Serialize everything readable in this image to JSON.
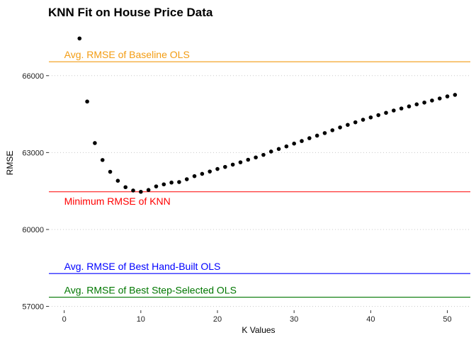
{
  "chart_data": {
    "type": "scatter",
    "title": "KNN Fit on House Price Data",
    "xlabel": "K Values",
    "ylabel": "RMSE",
    "xlim": [
      -2,
      53
    ],
    "ylim": [
      56850,
      67900
    ],
    "x_ticks": [
      0,
      10,
      20,
      30,
      40,
      50
    ],
    "y_ticks": [
      57000,
      60000,
      63000,
      66000
    ],
    "grid": "horizontal dotted",
    "marker_color": "#000000",
    "series": [
      {
        "x": [
          2,
          3,
          4,
          5,
          6,
          7,
          8,
          9,
          10,
          11,
          12,
          13,
          14,
          15,
          16,
          17,
          18,
          19,
          20,
          21,
          22,
          23,
          24,
          25,
          26,
          27,
          28,
          29,
          30,
          31,
          32,
          33,
          34,
          35,
          36,
          37,
          38,
          39,
          40,
          41,
          42,
          43,
          44,
          45,
          46,
          47,
          48,
          49,
          50,
          51
        ],
        "y": [
          67450,
          64990,
          63370,
          62710,
          62250,
          61900,
          61650,
          61520,
          61470,
          61540,
          61680,
          61760,
          61830,
          61850,
          61960,
          62080,
          62170,
          62260,
          62360,
          62440,
          62530,
          62620,
          62720,
          62810,
          62910,
          63040,
          63140,
          63240,
          63350,
          63450,
          63560,
          63660,
          63760,
          63870,
          63980,
          64080,
          64180,
          64280,
          64370,
          64460,
          64550,
          64640,
          64720,
          64800,
          64880,
          64950,
          65030,
          65110,
          65190,
          65250
        ]
      }
    ],
    "reference_lines": [
      {
        "label": "Avg. RMSE of Baseline OLS",
        "y": 66540,
        "color": "#F39C12"
      },
      {
        "label": "Minimum RMSE of KNN",
        "y": 61470,
        "color": "#FF0000"
      },
      {
        "label": "Avg. RMSE of Best Hand-Built OLS",
        "y": 58280,
        "color": "#0000FF"
      },
      {
        "label": "Avg. RMSE of Best Step-Selected OLS",
        "y": 57360,
        "color": "#007700"
      }
    ]
  }
}
